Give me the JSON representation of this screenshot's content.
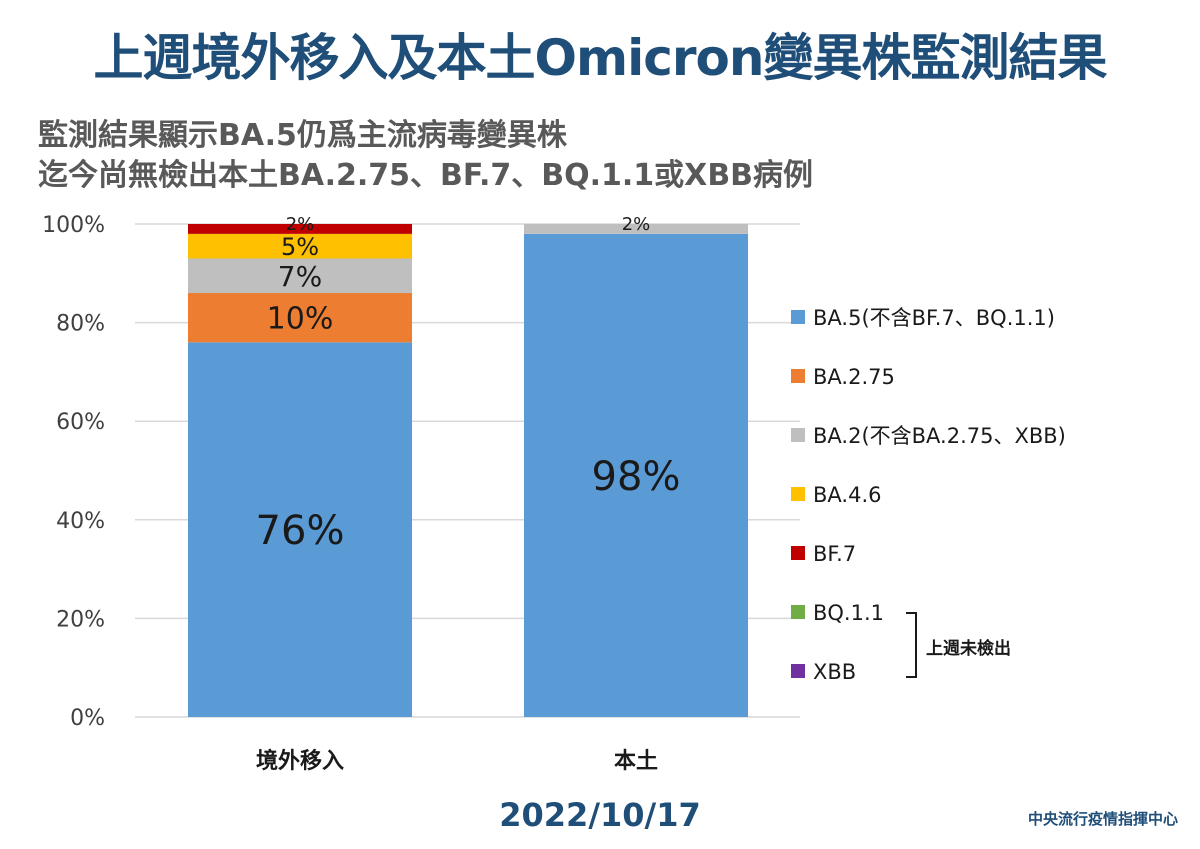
{
  "title": "上週境外移入及本土Omicron變異株監測結果",
  "subtitle": [
    "監測結果顯示BA.5仍爲主流病毒變異株",
    "迄今尚無檢出本土BA.2.75、BF.7、BQ.1.1或XBB病例"
  ],
  "date": "2022/10/17",
  "organization": "中央流行疫情指揮中心",
  "legend_bracket_note": "上週未檢出",
  "chart_data": {
    "type": "bar",
    "stacked": true,
    "categories": [
      "境外移入",
      "本土"
    ],
    "ylim": [
      0,
      100
    ],
    "yticks": [
      "0%",
      "20%",
      "40%",
      "60%",
      "80%",
      "100%"
    ],
    "grid": true,
    "legend_position": "right",
    "series": [
      {
        "name": "BA.5(不含BF.7、BQ.1.1)",
        "color": "#5b9bd5",
        "values": [
          76,
          98
        ],
        "labels": [
          "76%",
          "98%"
        ]
      },
      {
        "name": "BA.2.75",
        "color": "#ed7d31",
        "values": [
          10,
          0
        ],
        "labels": [
          "10%",
          ""
        ]
      },
      {
        "name": "BA.2(不含BA.2.75、XBB)",
        "color": "#bfbfbf",
        "values": [
          7,
          2
        ],
        "labels": [
          "7%",
          "2%"
        ]
      },
      {
        "name": "BA.4.6",
        "color": "#ffc000",
        "values": [
          5,
          0
        ],
        "labels": [
          "5%",
          ""
        ]
      },
      {
        "name": "BF.7",
        "color": "#c00000",
        "values": [
          2,
          0
        ],
        "labels": [
          "2%",
          ""
        ]
      },
      {
        "name": "BQ.1.1",
        "color": "#70ad47",
        "values": [
          0,
          0
        ],
        "labels": [
          "",
          ""
        ]
      },
      {
        "name": "XBB",
        "color": "#7030a0",
        "values": [
          0,
          0
        ],
        "labels": [
          "",
          ""
        ]
      }
    ]
  }
}
